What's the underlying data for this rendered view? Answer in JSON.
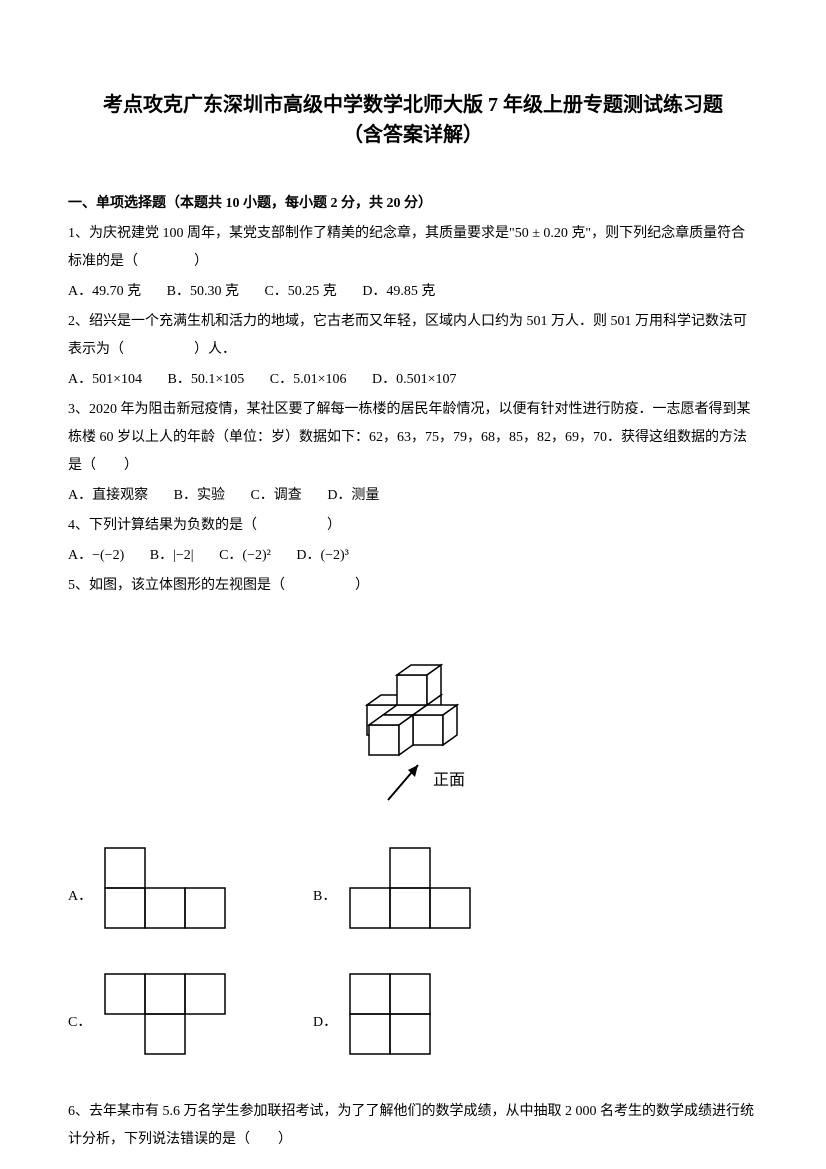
{
  "title_line1": "考点攻克广东深圳市高级中学数学北师大版 7 年级上册专题测试练习题",
  "title_line2": "（含答案详解）",
  "section_header": "一、单项选择题（本题共 10 小题，每小题 2 分，共 20 分）",
  "q1": {
    "text": "1、为庆祝建党 100 周年，某党支部制作了精美的纪念章，其质量要求是\"50 ± 0.20 克\"，则下列纪念章质量符合标准的是（　　　　）",
    "optA": "A．49.70 克",
    "optB": "B．50.30 克",
    "optC": "C．50.25 克",
    "optD": "D．49.85 克"
  },
  "q2": {
    "text": "2、绍兴是一个充满生机和活力的地域，它古老而又年轻，区域内人口约为 501 万人．则 501 万用科学记数法可表示为（　　　　　）人．",
    "optA": "A．501×104",
    "optB": "B．50.1×105",
    "optC": "C．5.01×106",
    "optD": "D．0.501×107"
  },
  "q3": {
    "text": "3、2020 年为阻击新冠疫情，某社区要了解每一栋楼的居民年龄情况，以便有针对性进行防疫．一志愿者得到某栋楼 60 岁以上人的年龄（单位：岁）数据如下：62，63，75，79，68，85，82，69，70．获得这组数据的方法是（　　）",
    "optA": "A．直接观察",
    "optB": "B．实验",
    "optC": "C．调查",
    "optD": "D．测量"
  },
  "q4": {
    "text": "4、下列计算结果为负数的是（　　　　　）",
    "optA": "A．−(−2)",
    "optB": "B．|−2|",
    "optC": "C．(−2)²",
    "optD": "D．(−2)³"
  },
  "q5": {
    "text": "5、如图，该立体图形的左视图是（　　　　　）",
    "front_label": "正面"
  },
  "q6": {
    "text": "6、去年某市有 5.6 万名学生参加联招考试，为了了解他们的数学成绩，从中抽取 2 000 名考生的数学成绩进行统计分析，下列说法错误的是（　　）"
  },
  "svg": {
    "stroke": "#000000",
    "stroke_width": 1.5,
    "cell": 40
  }
}
